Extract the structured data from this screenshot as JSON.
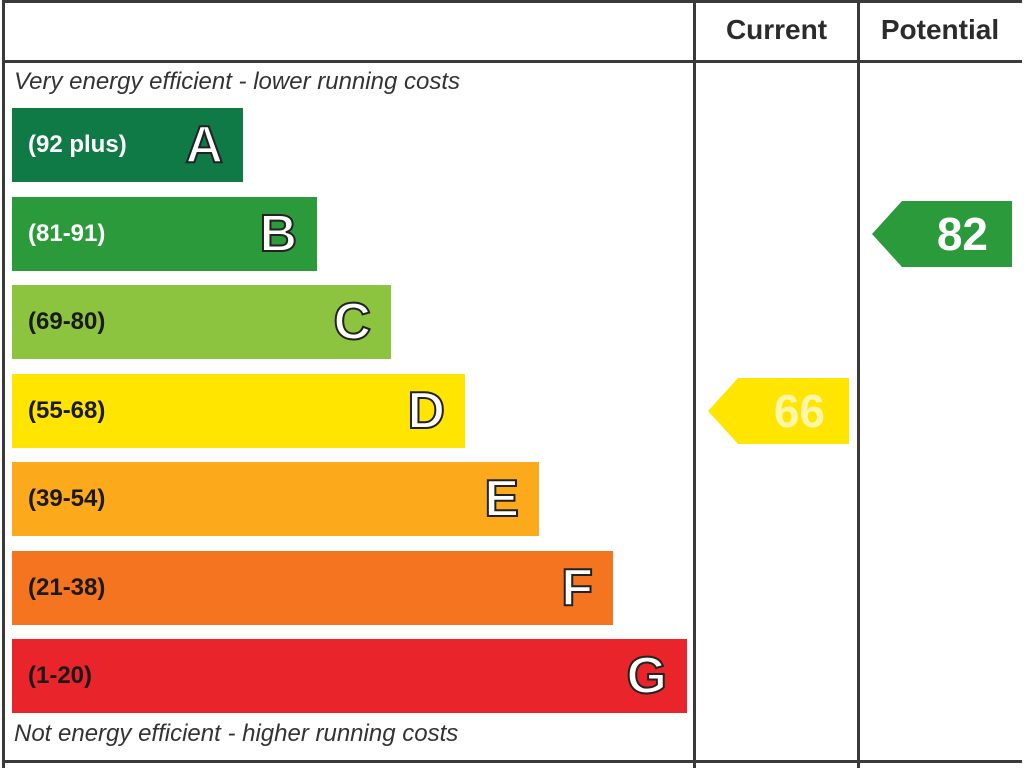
{
  "header": {
    "current_label": "Current",
    "potential_label": "Potential"
  },
  "captions": {
    "top": "Very energy efficient - lower running costs",
    "bottom": "Not energy efficient - higher running costs"
  },
  "chart_data": {
    "type": "bar",
    "categories": [
      "A",
      "B",
      "C",
      "D",
      "E",
      "F",
      "G"
    ],
    "bands": [
      {
        "letter": "A",
        "range": "(92 plus)",
        "min": 92,
        "max": 100,
        "color": "#0f7a45",
        "text_color": "#ffffff"
      },
      {
        "letter": "B",
        "range": "(81-91)",
        "min": 81,
        "max": 91,
        "color": "#2a9a3a",
        "text_color": "#ffffff"
      },
      {
        "letter": "C",
        "range": "(69-80)",
        "min": 69,
        "max": 80,
        "color": "#8cc43f",
        "text_color": "#1a1a1a"
      },
      {
        "letter": "D",
        "range": "(55-68)",
        "min": 55,
        "max": 68,
        "color": "#ffe500",
        "text_color": "#1a1a1a"
      },
      {
        "letter": "E",
        "range": "(39-54)",
        "min": 39,
        "max": 54,
        "color": "#fcaa1c",
        "text_color": "#1a1a1a"
      },
      {
        "letter": "F",
        "range": "(21-38)",
        "min": 21,
        "max": 38,
        "color": "#f4741f",
        "text_color": "#1a1a1a"
      },
      {
        "letter": "G",
        "range": "(1-20)",
        "min": 1,
        "max": 20,
        "color": "#e9242a",
        "text_color": "#1a1a1a"
      }
    ],
    "current": {
      "value": 66,
      "band": "D",
      "color": "#ffe500",
      "text_color": "#fff6a8"
    },
    "potential": {
      "value": 82,
      "band": "B",
      "color": "#2a9a3a",
      "text_color": "#ffffff"
    }
  }
}
